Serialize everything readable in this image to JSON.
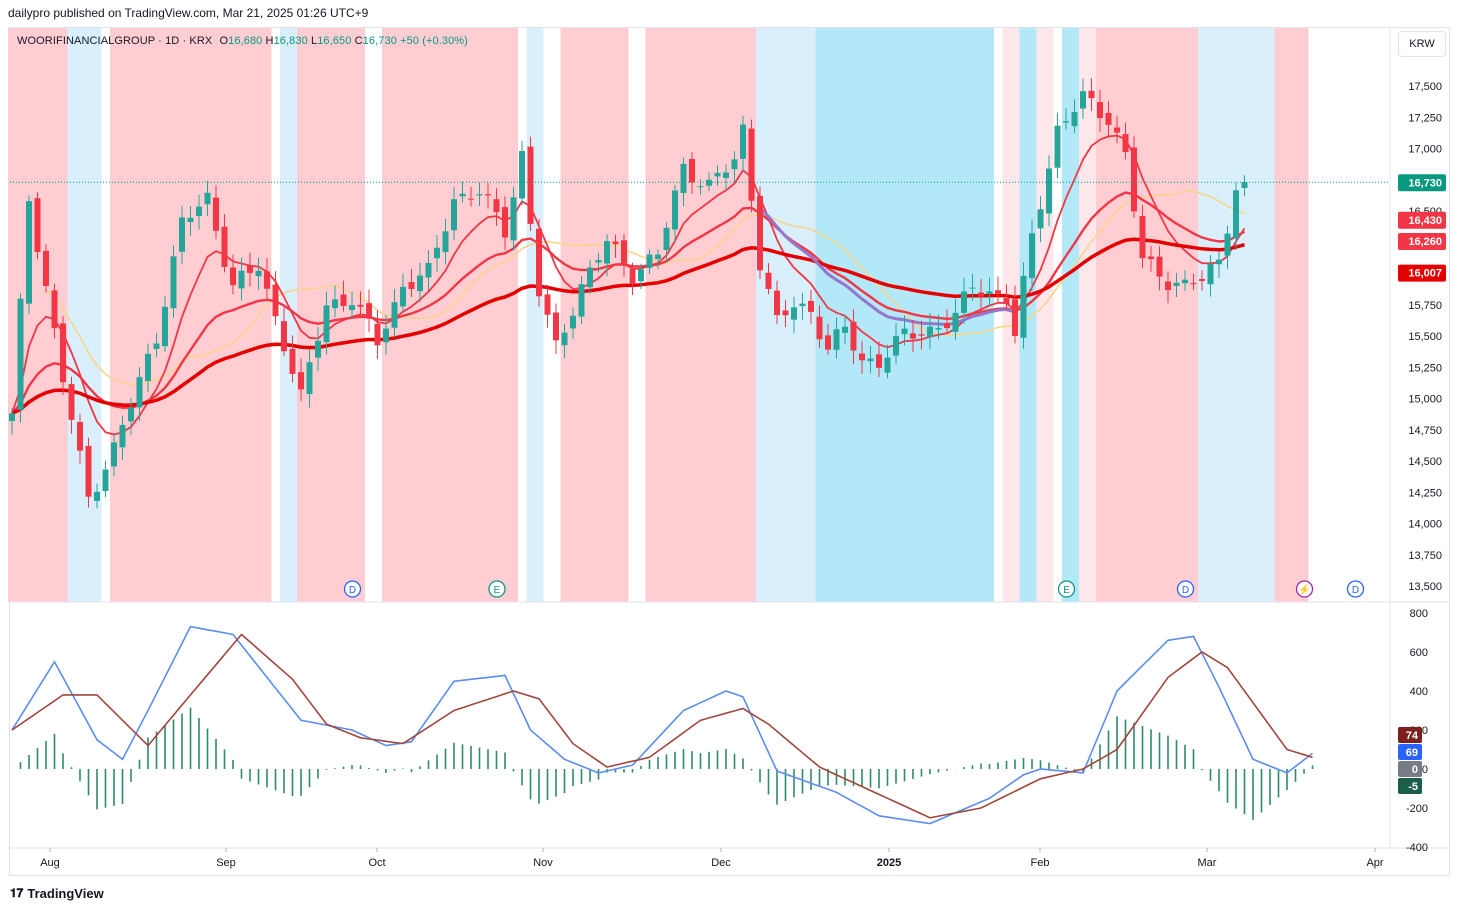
{
  "header": {
    "published": "dailypro published on TradingView.com, Mar 21, 2025 01:26 UTC+9"
  },
  "legend": {
    "symbol": "WOORIFINANCIALGROUP · 1D · KRX",
    "o_label": "O",
    "o": "16,680",
    "h_label": "H",
    "h": "16,830",
    "l_label": "L",
    "l": "16,650",
    "c_label": "C",
    "c": "16,730",
    "change": "+50 (+0.30%)"
  },
  "currency": "KRW",
  "footer": {
    "brand": "TradingView"
  },
  "colors": {
    "up": "#26a69a",
    "down": "#f23645",
    "bg_red": "#ffcdd2",
    "bg_blue": "#bbeafb",
    "ma_short": "#f23645",
    "ma_long": "#e50000",
    "ma_mid": "#f6d58e",
    "ma_purple": "#9575cd",
    "macd": "#5b8def",
    "signal": "#a0473d",
    "hist": "#2f8a6b"
  },
  "chart_data": [
    {
      "type": "candlestick",
      "title": "WOORIFINANCIALGROUP · 1D · KRX",
      "ylim": [
        13400,
        17700
      ],
      "yticks": [
        "17,500",
        "17,250",
        "17,000",
        "16,750",
        "16,500",
        "16,250",
        "16,000",
        "15,750",
        "15,500",
        "15,250",
        "15,000",
        "14,750",
        "14,500",
        "14,250",
        "14,000",
        "13,750",
        "13,500"
      ],
      "x_labels": [
        "Aug",
        "Sep",
        "Oct",
        "Nov",
        "Dec",
        "2025",
        "Feb",
        "Mar",
        "Apr"
      ],
      "last_price": 16730,
      "price_labels": [
        {
          "text": "16,730",
          "value": 16730,
          "color": "#089981"
        },
        {
          "text": "16,430",
          "value": 16430,
          "color": "#f23645"
        },
        {
          "text": "16,260",
          "value": 16260,
          "color": "#f23645"
        },
        {
          "text": "16,007",
          "value": 16007,
          "color": "#e50000"
        }
      ],
      "close_anchors": [
        [
          0,
          14850
        ],
        [
          2,
          16600
        ],
        [
          4,
          15900
        ],
        [
          6,
          15150
        ],
        [
          9,
          14200
        ],
        [
          12,
          14600
        ],
        [
          14,
          14950
        ],
        [
          17,
          15500
        ],
        [
          20,
          16400
        ],
        [
          23,
          16600
        ],
        [
          26,
          15900
        ],
        [
          29,
          16050
        ],
        [
          32,
          15450
        ],
        [
          34,
          15000
        ],
        [
          37,
          15750
        ],
        [
          40,
          15800
        ],
        [
          43,
          15450
        ],
        [
          46,
          15900
        ],
        [
          49,
          16000
        ],
        [
          52,
          16600
        ],
        [
          55,
          16650
        ],
        [
          58,
          16350
        ],
        [
          60,
          16950
        ],
        [
          62,
          15850
        ],
        [
          64,
          15400
        ],
        [
          67,
          15900
        ],
        [
          70,
          16250
        ],
        [
          73,
          16000
        ],
        [
          76,
          16150
        ],
        [
          79,
          16850
        ],
        [
          82,
          16700
        ],
        [
          85,
          16900
        ],
        [
          86,
          17150
        ],
        [
          88,
          16100
        ],
        [
          90,
          15600
        ],
        [
          92,
          15750
        ],
        [
          94,
          15700
        ],
        [
          96,
          15400
        ],
        [
          98,
          15550
        ],
        [
          100,
          15300
        ],
        [
          102,
          15300
        ],
        [
          105,
          15500
        ],
        [
          108,
          15550
        ],
        [
          111,
          15650
        ],
        [
          113,
          15900
        ],
        [
          115,
          15850
        ],
        [
          117,
          15800
        ],
        [
          118,
          15500
        ],
        [
          120,
          16300
        ],
        [
          123,
          17150
        ],
        [
          126,
          17400
        ],
        [
          129,
          17250
        ],
        [
          131,
          16950
        ],
        [
          133,
          16100
        ],
        [
          136,
          15950
        ],
        [
          138,
          15900
        ],
        [
          140,
          15950
        ],
        [
          142,
          16100
        ],
        [
          144,
          16700
        ],
        [
          145,
          16730
        ]
      ],
      "background_bands": [
        {
          "from": 0,
          "to": 6,
          "color": "red"
        },
        {
          "from": 7,
          "to": 10,
          "color": "lightblue"
        },
        {
          "from": 12,
          "to": 30,
          "color": "red"
        },
        {
          "from": 32,
          "to": 33,
          "color": "lightblue"
        },
        {
          "from": 34,
          "to": 35,
          "color": "red"
        },
        {
          "from": 36,
          "to": 36,
          "color": "red"
        },
        {
          "from": 37,
          "to": 40,
          "color": "red"
        },
        {
          "from": 41,
          "to": 41,
          "color": "red"
        },
        {
          "from": 44,
          "to": 59,
          "color": "red"
        },
        {
          "from": 61,
          "to": 62,
          "color": "lightblue"
        },
        {
          "from": 65,
          "to": 72,
          "color": "red"
        },
        {
          "from": 75,
          "to": 87,
          "color": "red"
        },
        {
          "from": 88,
          "to": 88,
          "color": "lightblue"
        },
        {
          "from": 89,
          "to": 94,
          "color": "lightblue"
        },
        {
          "from": 95,
          "to": 115,
          "color": "blue"
        },
        {
          "from": 117,
          "to": 117,
          "color": "pink"
        },
        {
          "from": 118,
          "to": 118,
          "color": "pink"
        },
        {
          "from": 119,
          "to": 120,
          "color": "blue"
        },
        {
          "from": 121,
          "to": 122,
          "color": "pink"
        },
        {
          "from": 124,
          "to": 125,
          "color": "blue"
        },
        {
          "from": 126,
          "to": 127,
          "color": "pink"
        },
        {
          "from": 128,
          "to": 139,
          "color": "red"
        },
        {
          "from": 140,
          "to": 148,
          "color": "lightblue"
        },
        {
          "from": 149,
          "to": 152,
          "color": "red"
        }
      ],
      "events": [
        {
          "label": "D",
          "bar": 41,
          "kind": "dividend"
        },
        {
          "label": "E",
          "bar": 58,
          "kind": "earnings"
        },
        {
          "label": "E",
          "bar": 125,
          "kind": "earnings"
        },
        {
          "label": "D",
          "bar": 139,
          "kind": "dividend"
        },
        {
          "label": "⚡",
          "bar": 153,
          "kind": "split"
        },
        {
          "label": "D",
          "bar": 159,
          "kind": "dividend"
        }
      ]
    },
    {
      "type": "line",
      "title": "",
      "ylim": [
        -400,
        800
      ],
      "yticks": [
        "800",
        "600",
        "400",
        "200",
        "0",
        "-200",
        "-400"
      ],
      "macd_anchors": [
        [
          0,
          200
        ],
        [
          5,
          550
        ],
        [
          10,
          150
        ],
        [
          13,
          50
        ],
        [
          16,
          300
        ],
        [
          21,
          730
        ],
        [
          26,
          690
        ],
        [
          34,
          250
        ],
        [
          40,
          200
        ],
        [
          44,
          120
        ],
        [
          47,
          140
        ],
        [
          52,
          450
        ],
        [
          58,
          480
        ],
        [
          61,
          200
        ],
        [
          65,
          50
        ],
        [
          69,
          -20
        ],
        [
          73,
          20
        ],
        [
          79,
          300
        ],
        [
          84,
          400
        ],
        [
          86,
          370
        ],
        [
          90,
          -10
        ],
        [
          97,
          -120
        ],
        [
          102,
          -240
        ],
        [
          108,
          -280
        ],
        [
          115,
          -150
        ],
        [
          119,
          -30
        ],
        [
          121,
          0
        ],
        [
          126,
          -20
        ],
        [
          130,
          400
        ],
        [
          136,
          660
        ],
        [
          139,
          680
        ],
        [
          142,
          420
        ],
        [
          146,
          50
        ],
        [
          150,
          -20
        ],
        [
          153,
          80
        ]
      ],
      "signal_anchors": [
        [
          0,
          200
        ],
        [
          6,
          380
        ],
        [
          10,
          380
        ],
        [
          16,
          120
        ],
        [
          21,
          380
        ],
        [
          27,
          690
        ],
        [
          33,
          460
        ],
        [
          37,
          230
        ],
        [
          41,
          160
        ],
        [
          46,
          130
        ],
        [
          52,
          300
        ],
        [
          59,
          400
        ],
        [
          62,
          360
        ],
        [
          66,
          130
        ],
        [
          70,
          10
        ],
        [
          75,
          60
        ],
        [
          81,
          250
        ],
        [
          86,
          310
        ],
        [
          89,
          230
        ],
        [
          95,
          10
        ],
        [
          103,
          -150
        ],
        [
          108,
          -250
        ],
        [
          114,
          -200
        ],
        [
          121,
          -50
        ],
        [
          126,
          0
        ],
        [
          130,
          100
        ],
        [
          136,
          470
        ],
        [
          140,
          600
        ],
        [
          143,
          520
        ],
        [
          147,
          280
        ],
        [
          150,
          100
        ],
        [
          153,
          60
        ]
      ],
      "histogram_value": 5,
      "price_labels": [
        {
          "text": "74",
          "value": 74,
          "color": "#7b1f1f"
        },
        {
          "text": "69",
          "value": 69,
          "color": "#2962ff"
        },
        {
          "text": "0",
          "value": 0,
          "color": "#787b86"
        },
        {
          "text": "-5",
          "value": -5,
          "color": "#1b5e4a"
        }
      ]
    }
  ]
}
